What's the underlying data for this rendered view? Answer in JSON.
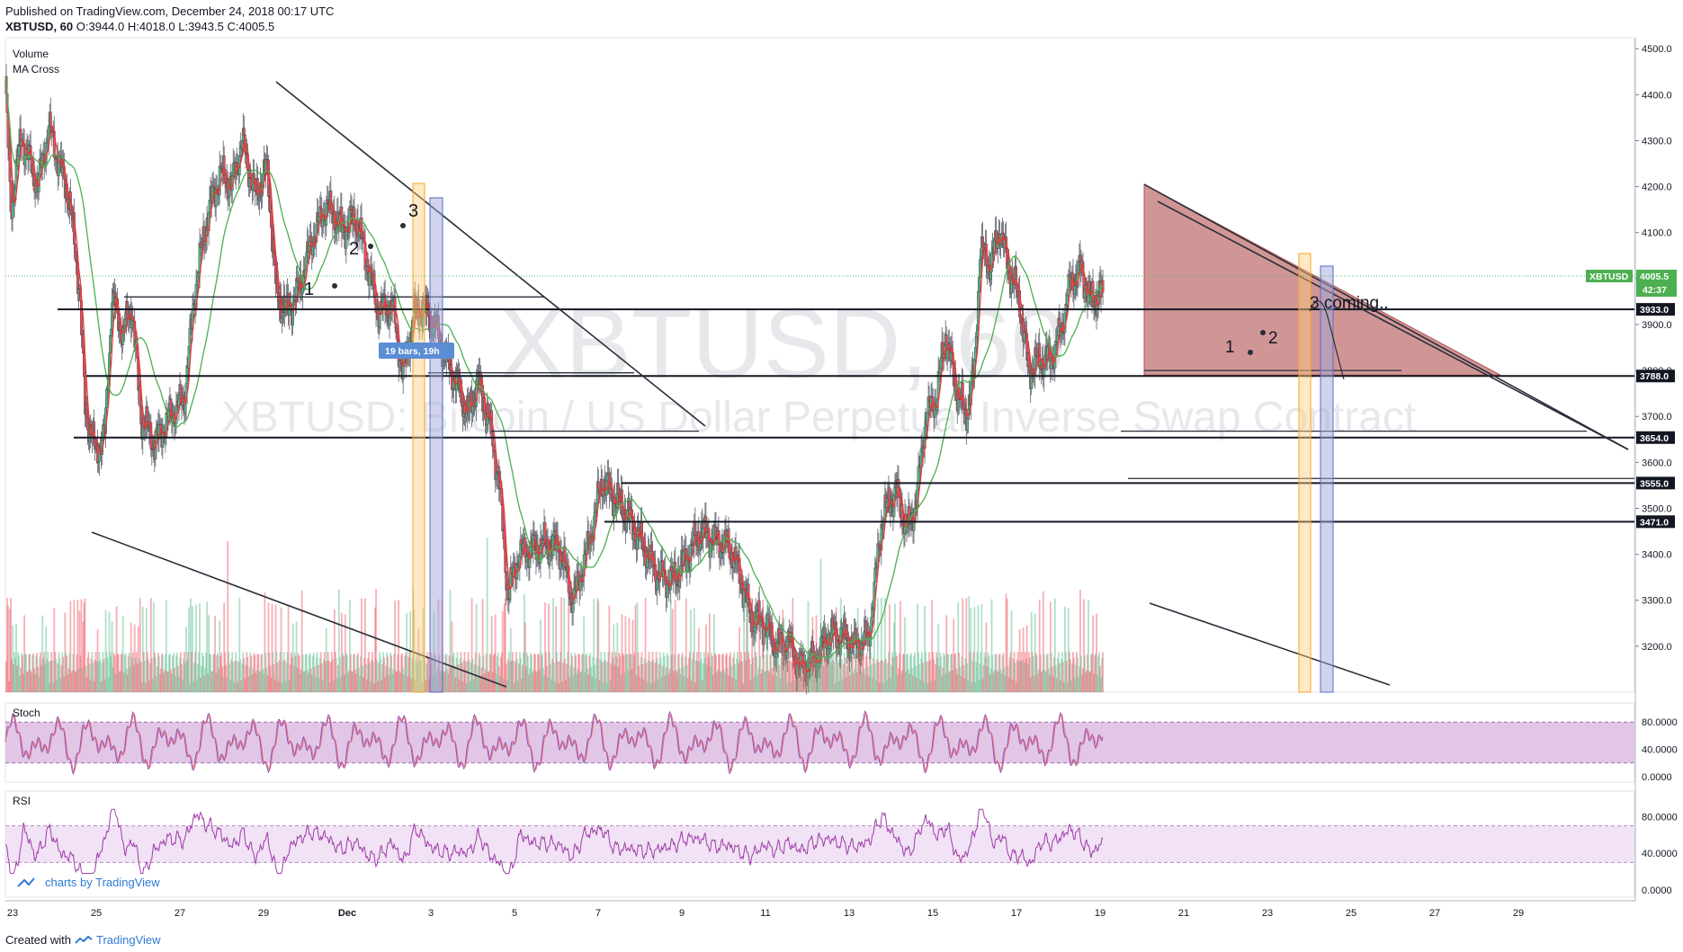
{
  "header": {
    "published": "Published on TradingView.com, December 24, 2018 00:17 UTC",
    "symbol": "XBTUSD, 60",
    "ohlc": "O:3944.0 H:4018.0 L:3943.5 C:4005.5"
  },
  "footer": {
    "created_with": "Created with",
    "brand": "TradingView"
  },
  "watermark": {
    "line1": "XBTUSD, 60",
    "line2": "XBTUSD: Bitcoin / US Dollar Perpetual Inverse Swap Contract"
  },
  "legend": {
    "volume": "Volume",
    "ma_cross": "MA Cross"
  },
  "stoch_label": "Stoch",
  "rsi_label": "RSI",
  "branding": "charts by TradingView",
  "annotations": {
    "bars_badge": "19 bars, 19h",
    "coming": "3 coming..",
    "left_waves": [
      "1",
      "2",
      "3"
    ],
    "right_waves": [
      "1",
      "2"
    ]
  },
  "colors": {
    "bull": "#53b987",
    "bear": "#eb4d5c",
    "ma_fast": "#e53935",
    "ma_slow": "#4caf50",
    "triangle_fill": "#b05050",
    "stoch_band": "#d7b3de",
    "stoch_line": "#7e57c2",
    "rsi_line": "#9c3ca8",
    "rsi_band": "#f1dff4",
    "badge": "#5b8dd4",
    "orange_box": "#ffcc80",
    "blue_box": "#9fa8da",
    "last_price_bg": "#4caf50"
  },
  "price_axis": {
    "ticks": [
      "4500.0",
      "4400.0",
      "4300.0",
      "4200.0",
      "4100.0",
      "4000.0",
      "3900.0",
      "3800.0",
      "3700.0",
      "3600.0",
      "3500.0",
      "3400.0",
      "3300.0",
      "3200.0"
    ],
    "last_symbol": "XBTUSD",
    "last_price": "4005.5",
    "countdown": "42:37",
    "levels": [
      "3933.0",
      "3788.0",
      "3654.0",
      "3555.0",
      "3471.0"
    ]
  },
  "stoch_axis": [
    "80.0000",
    "40.0000",
    "0.0000"
  ],
  "rsi_axis": [
    "80.0000",
    "40.0000",
    "0.0000"
  ],
  "time_axis": [
    "23",
    "25",
    "27",
    "29",
    "Dec",
    "3",
    "5",
    "7",
    "9",
    "11",
    "13",
    "15",
    "17",
    "19",
    "21",
    "23",
    "25",
    "27",
    "29"
  ],
  "chart_data": {
    "type": "candlestick",
    "title": "XBTUSD, 60",
    "y_range": [
      3100,
      4520
    ],
    "x_range": [
      "2018-11-23",
      "2018-12-29"
    ],
    "horizontal_levels": [
      3933.0,
      3788.0,
      3654.0,
      3555.0,
      3471.0
    ],
    "price_path": [
      [
        0,
        4430
      ],
      [
        6,
        4150
      ],
      [
        18,
        4310
      ],
      [
        36,
        4200
      ],
      [
        48,
        4330
      ],
      [
        70,
        4180
      ],
      [
        82,
        3980
      ],
      [
        88,
        3720
      ],
      [
        100,
        3620
      ],
      [
        110,
        3660
      ],
      [
        118,
        3960
      ],
      [
        130,
        3880
      ],
      [
        140,
        3940
      ],
      [
        150,
        3700
      ],
      [
        165,
        3640
      ],
      [
        182,
        3700
      ],
      [
        198,
        3740
      ],
      [
        210,
        3980
      ],
      [
        225,
        4150
      ],
      [
        238,
        4230
      ],
      [
        250,
        4200
      ],
      [
        262,
        4300
      ],
      [
        276,
        4180
      ],
      [
        290,
        4240
      ],
      [
        300,
        3960
      ],
      [
        312,
        3930
      ],
      [
        324,
        3970
      ],
      [
        340,
        4090
      ],
      [
        355,
        4160
      ],
      [
        372,
        4110
      ],
      [
        388,
        4130
      ],
      [
        402,
        4020
      ],
      [
        412,
        3930
      ],
      [
        428,
        3940
      ],
      [
        440,
        3790
      ],
      [
        452,
        3920
      ],
      [
        462,
        3940
      ],
      [
        476,
        3890
      ],
      [
        490,
        3810
      ],
      [
        502,
        3760
      ],
      [
        512,
        3700
      ],
      [
        522,
        3780
      ],
      [
        534,
        3700
      ],
      [
        546,
        3560
      ],
      [
        556,
        3310
      ],
      [
        568,
        3400
      ],
      [
        580,
        3410
      ],
      [
        595,
        3420
      ],
      [
        612,
        3420
      ],
      [
        628,
        3300
      ],
      [
        645,
        3420
      ],
      [
        660,
        3560
      ],
      [
        672,
        3530
      ],
      [
        690,
        3480
      ],
      [
        705,
        3420
      ],
      [
        720,
        3360
      ],
      [
        738,
        3340
      ],
      [
        755,
        3400
      ],
      [
        770,
        3450
      ],
      [
        785,
        3430
      ],
      [
        800,
        3420
      ],
      [
        812,
        3360
      ],
      [
        825,
        3260
      ],
      [
        840,
        3250
      ],
      [
        852,
        3200
      ],
      [
        866,
        3210
      ],
      [
        880,
        3150
      ],
      [
        895,
        3170
      ],
      [
        910,
        3220
      ],
      [
        925,
        3225
      ],
      [
        940,
        3200
      ],
      [
        955,
        3220
      ],
      [
        962,
        3340
      ],
      [
        970,
        3480
      ],
      [
        985,
        3540
      ],
      [
        998,
        3450
      ],
      [
        1008,
        3520
      ],
      [
        1018,
        3700
      ],
      [
        1030,
        3740
      ],
      [
        1040,
        3880
      ],
      [
        1052,
        3760
      ],
      [
        1062,
        3700
      ],
      [
        1072,
        3800
      ],
      [
        1078,
        4060
      ],
      [
        1090,
        4030
      ],
      [
        1100,
        4110
      ],
      [
        1110,
        4020
      ],
      [
        1122,
        3950
      ],
      [
        1132,
        3800
      ],
      [
        1142,
        3820
      ],
      [
        1158,
        3830
      ],
      [
        1168,
        3890
      ],
      [
        1178,
        3990
      ],
      [
        1190,
        4020
      ],
      [
        1200,
        3950
      ],
      [
        1214,
        3970
      ]
    ],
    "x_unit": "index of 60-minute candle from 2018-11-23",
    "series": [
      {
        "name": "MA Cross"
      }
    ]
  }
}
